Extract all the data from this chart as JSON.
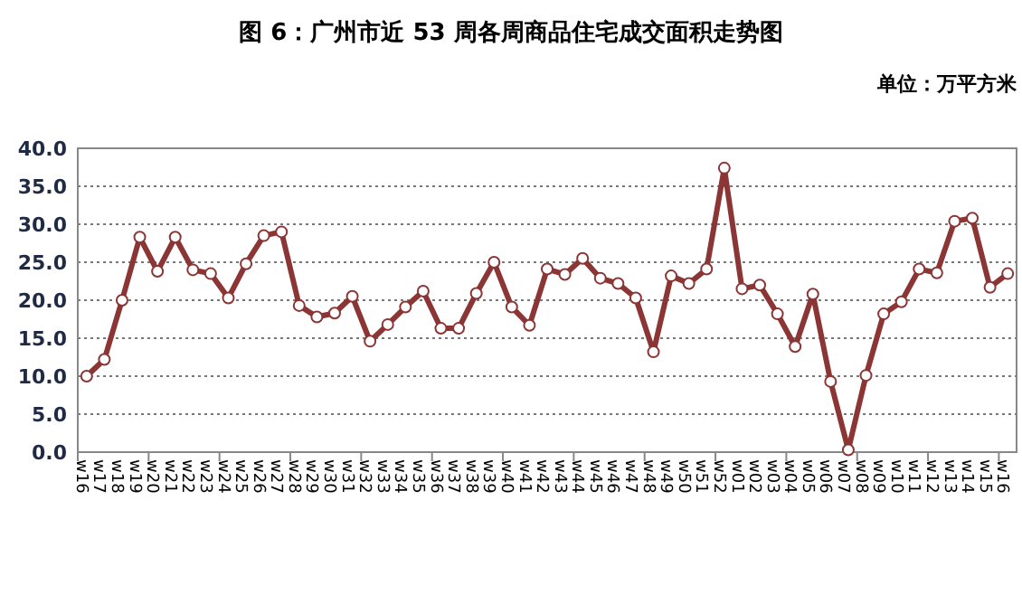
{
  "chart_data": {
    "type": "line",
    "title": "图 6：广州市近 53 周各周商品住宅成交面积走势图",
    "ylabel": "单位：万平方米",
    "categories": [
      "w16",
      "w17",
      "w18",
      "w19",
      "w20",
      "w21",
      "w22",
      "w23",
      "w24",
      "w25",
      "w26",
      "w27",
      "w28",
      "w29",
      "w30",
      "w31",
      "w32",
      "w33",
      "w34",
      "w35",
      "w36",
      "w37",
      "w38",
      "w39",
      "w40",
      "w41",
      "w42",
      "w43",
      "w44",
      "w45",
      "w46",
      "w47",
      "w48",
      "w49",
      "w50",
      "w51",
      "w52",
      "w01",
      "w02",
      "w03",
      "w04",
      "w05",
      "w06",
      "w07",
      "w08",
      "w09",
      "w10",
      "w11",
      "w12",
      "w13",
      "w14",
      "w15",
      "w16"
    ],
    "series": [
      {
        "color": "#8b3535",
        "values": [
          10.0,
          12.2,
          20.0,
          28.3,
          23.8,
          28.3,
          24.0,
          23.5,
          20.3,
          24.8,
          28.5,
          29.0,
          19.3,
          17.8,
          18.3,
          20.5,
          14.6,
          16.8,
          19.1,
          21.2,
          16.3,
          16.3,
          20.9,
          25.0,
          19.1,
          16.7,
          24.1,
          23.4,
          25.5,
          22.9,
          22.2,
          20.3,
          13.2,
          23.2,
          22.2,
          24.1,
          37.4,
          21.5,
          22.0,
          18.2,
          13.9,
          20.8,
          9.3,
          0.3,
          10.1,
          18.2,
          19.8,
          24.1,
          23.6,
          30.4,
          30.8,
          21.7,
          23.5
        ]
      }
    ],
    "ylim": [
      0,
      40
    ],
    "yticks": [
      {
        "value": 0,
        "label": "0.0"
      },
      {
        "value": 5,
        "label": "5.0"
      },
      {
        "value": 10,
        "label": "10.0"
      },
      {
        "value": 15,
        "label": "15.0"
      },
      {
        "value": 20,
        "label": "20.0"
      },
      {
        "value": 25,
        "label": "25.0"
      },
      {
        "value": 30,
        "label": "30.0"
      },
      {
        "value": 35,
        "label": "35.0"
      },
      {
        "value": 40,
        "label": "40.0"
      }
    ],
    "grid": "y",
    "marker": "circle",
    "line_style": "solid"
  }
}
